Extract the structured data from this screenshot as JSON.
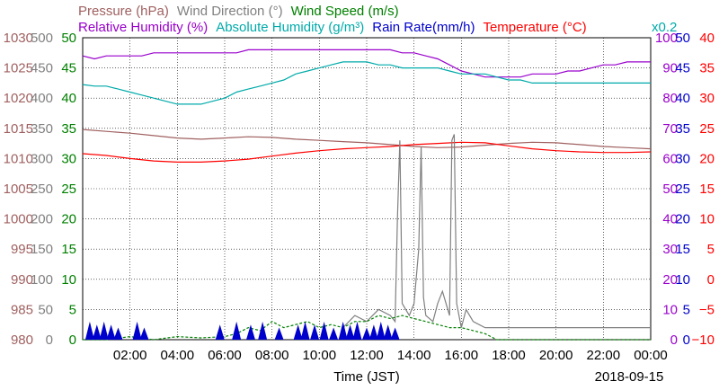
{
  "chart_data": {
    "type": "line",
    "date": "2018-09-15",
    "xlabel": "Time (JST)",
    "x_ticks": [
      "02:00",
      "04:00",
      "06:00",
      "08:00",
      "10:00",
      "12:00",
      "14:00",
      "16:00",
      "18:00",
      "20:00",
      "22:00",
      "00:00"
    ],
    "xlim_hours": [
      0,
      24
    ],
    "grid": true,
    "headers": {
      "row1": [
        {
          "text": "Pressure (hPa)",
          "color": "#a06060"
        },
        {
          "text": "Wind Direction (°)",
          "color": "#808080"
        },
        {
          "text": "Wind Speed (m/s)",
          "color": "#008000"
        }
      ],
      "row2": [
        {
          "text": "Relative Humidity (%)",
          "color": "#9900cc"
        },
        {
          "text": "Absolute Humidity (g/m³)",
          "color": "#00aaaa"
        },
        {
          "text": "Rain Rate(mm/h)",
          "color": "#0000cc"
        },
        {
          "text": "Temperature (°C)",
          "color": "#ff0000"
        }
      ],
      "scale_note": {
        "text": "x0.2",
        "color": "#00aaaa"
      }
    },
    "axes": {
      "pressure": {
        "color": "#a06060",
        "ticks": [
          "980",
          "985",
          "990",
          "995",
          "1000",
          "1005",
          "1010",
          "1015",
          "1020",
          "1025",
          "1030"
        ],
        "range": [
          980,
          1030
        ]
      },
      "wind_direction": {
        "color": "#808080",
        "ticks": [
          "0",
          "50",
          "100",
          "150",
          "200",
          "250",
          "300",
          "350",
          "400",
          "450",
          "500"
        ],
        "range": [
          0,
          500
        ]
      },
      "wind_speed": {
        "color": "#008000",
        "ticks": [
          "0",
          "5",
          "10",
          "15",
          "20",
          "25",
          "30",
          "35",
          "40",
          "45",
          "50"
        ],
        "range": [
          0,
          50
        ]
      },
      "relative_humidity": {
        "color": "#9900cc",
        "ticks": [
          "0",
          "10",
          "20",
          "30",
          "40",
          "50",
          "60",
          "70",
          "80",
          "90",
          "100"
        ],
        "range": [
          0,
          100
        ]
      },
      "rain_rate": {
        "color": "#0000cc",
        "ticks": [
          "0",
          "5",
          "10",
          "15",
          "20",
          "25",
          "30",
          "35",
          "40",
          "45",
          "50"
        ],
        "range": [
          0,
          50
        ]
      },
      "temperature": {
        "color": "#ff0000",
        "ticks": [
          "−10",
          "−5",
          "0",
          "5",
          "10",
          "15",
          "20",
          "25",
          "30",
          "35",
          "40"
        ],
        "range": [
          -10,
          40
        ]
      }
    },
    "series": [
      {
        "name": "Relative Humidity",
        "color": "#9900cc",
        "x": [
          0,
          0.5,
          1,
          1.5,
          2,
          2.5,
          3,
          3.5,
          4,
          4.5,
          5,
          5.5,
          6,
          6.5,
          7,
          7.5,
          8,
          8.5,
          9,
          9.5,
          10,
          10.5,
          11,
          11.5,
          12,
          12.5,
          13,
          13.5,
          14,
          14.5,
          15,
          15.5,
          16,
          16.5,
          17,
          17.5,
          18,
          18.5,
          19,
          19.5,
          20,
          20.5,
          21,
          21.5,
          22,
          22.5,
          23,
          23.5,
          24
        ],
        "y": [
          94,
          93,
          94,
          94,
          94,
          94,
          95,
          95,
          95,
          95,
          95,
          95,
          95,
          95,
          96,
          96,
          96,
          96,
          96,
          96,
          96,
          96,
          96,
          96,
          96,
          96,
          96,
          95,
          95,
          94,
          93,
          91,
          89,
          88,
          87,
          87,
          87,
          87,
          88,
          88,
          88,
          89,
          89,
          90,
          91,
          91,
          92,
          92,
          92
        ]
      },
      {
        "name": "Absolute Humidity",
        "color": "#00aaaa",
        "x": [
          0,
          0.5,
          1,
          1.5,
          2,
          2.5,
          3,
          3.5,
          4,
          4.5,
          5,
          5.5,
          6,
          6.5,
          7,
          7.5,
          8,
          8.5,
          9,
          9.5,
          10,
          10.5,
          11,
          11.5,
          12,
          12.5,
          13,
          13.5,
          14,
          14.5,
          15,
          15.5,
          16,
          16.5,
          17,
          17.5,
          18,
          18.5,
          19,
          19.5,
          20,
          20.5,
          21,
          21.5,
          22,
          22.5,
          23,
          23.5,
          24
        ],
        "y": [
          84.5,
          84,
          84,
          83,
          82,
          81,
          80,
          79,
          78,
          78,
          78,
          79,
          80,
          82,
          83,
          84,
          85,
          86,
          88,
          89,
          90,
          91,
          92,
          92,
          92,
          91,
          91,
          90,
          90,
          90,
          90,
          89,
          88,
          88,
          88,
          87,
          86,
          86,
          85,
          85,
          85,
          85,
          85,
          85,
          85,
          85,
          85,
          85,
          85
        ]
      },
      {
        "name": "Pressure",
        "color": "#a06060",
        "x": [
          0,
          1,
          2,
          3,
          4,
          5,
          6,
          7,
          8,
          9,
          10,
          11,
          12,
          13,
          14,
          15,
          16,
          17,
          18,
          19,
          20,
          21,
          22,
          23,
          24
        ],
        "y": [
          1014.8,
          1014.5,
          1014.2,
          1013.8,
          1013.4,
          1013.2,
          1013.4,
          1013.6,
          1013.5,
          1013.2,
          1013.0,
          1012.8,
          1012.6,
          1012.3,
          1012.0,
          1011.8,
          1011.9,
          1012.2,
          1012.5,
          1012.7,
          1012.6,
          1012.3,
          1012.0,
          1011.8,
          1011.6
        ]
      },
      {
        "name": "Temperature",
        "color": "#ff0000",
        "x": [
          0,
          1,
          2,
          3,
          4,
          5,
          6,
          7,
          8,
          9,
          10,
          11,
          12,
          13,
          14,
          15,
          16,
          17,
          18,
          19,
          20,
          21,
          22,
          23,
          24
        ],
        "y": [
          20.8,
          20.5,
          20.0,
          19.6,
          19.4,
          19.4,
          19.6,
          19.9,
          20.4,
          20.9,
          21.3,
          21.6,
          21.8,
          22.0,
          22.3,
          22.5,
          22.7,
          22.6,
          22.1,
          21.6,
          21.3,
          21.1,
          21.0,
          21.0,
          21.1
        ]
      },
      {
        "name": "Wind Direction",
        "color": "#808080",
        "x": [
          11,
          11.5,
          12,
          12.5,
          13,
          13.2,
          13.3,
          13.4,
          13.5,
          13.8,
          14,
          14.2,
          14.3,
          14.4,
          14.5,
          14.8,
          15,
          15.2,
          15.5,
          15.6,
          15.7,
          15.8,
          15.9,
          16,
          16.2,
          16.5,
          17,
          17.5,
          18,
          19,
          20,
          21,
          22,
          23,
          24
        ],
        "y": [
          20,
          40,
          30,
          50,
          40,
          30,
          200,
          330,
          60,
          40,
          60,
          150,
          320,
          70,
          40,
          30,
          60,
          80,
          40,
          330,
          340,
          60,
          40,
          20,
          50,
          30,
          20,
          20,
          20,
          20,
          20,
          20,
          20,
          20,
          20
        ]
      },
      {
        "name": "Wind Speed",
        "color": "#008000",
        "x": [
          0,
          1,
          2,
          3,
          4,
          5,
          6,
          6.5,
          7,
          7.5,
          8,
          8.5,
          9,
          9.5,
          10,
          10.5,
          11,
          11.5,
          12,
          12.5,
          13,
          13.5,
          14,
          14.5,
          15,
          15.5,
          16,
          16.5,
          17,
          17.5,
          18,
          24
        ],
        "y": [
          0,
          0,
          0.5,
          0,
          0.5,
          0.3,
          0.5,
          1,
          2,
          1.5,
          3,
          2,
          2.5,
          3,
          2,
          2.5,
          2,
          3,
          3,
          4,
          3.5,
          4,
          3.5,
          3,
          2.5,
          2,
          2,
          1.5,
          1,
          0,
          0,
          0
        ]
      },
      {
        "name": "Rain Rate",
        "color": "#0000cc",
        "x": [
          0.3,
          0.6,
          0.9,
          1.2,
          1.5,
          2.3,
          2.6,
          5.8,
          6.5,
          7.1,
          7.6,
          8.3,
          9.1,
          9.4,
          9.8,
          10.2,
          10.6,
          11.0,
          11.3,
          11.6,
          12.0,
          12.3,
          12.6,
          12.9,
          13.2
        ],
        "y": [
          3,
          2.5,
          3,
          2.5,
          2,
          3,
          2,
          2.5,
          3,
          2.5,
          3,
          2,
          2.5,
          3,
          2.5,
          3,
          2,
          3,
          2.5,
          3,
          2,
          2.5,
          3,
          2.5,
          2
        ]
      }
    ]
  }
}
